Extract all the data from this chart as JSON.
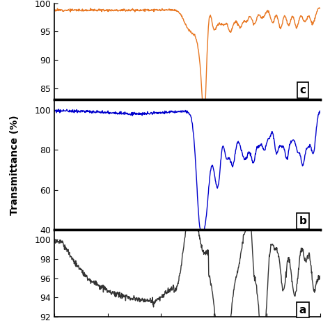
{
  "panel_c": {
    "ylim": [
      83,
      100
    ],
    "yticks": [
      85,
      90,
      95,
      100
    ],
    "label": "c",
    "color": "#E87722",
    "line_width": 1.0
  },
  "panel_b": {
    "ylim": [
      40,
      105
    ],
    "yticks": [
      40,
      60,
      80,
      100
    ],
    "label": "b",
    "color": "#0000CC",
    "line_width": 1.0
  },
  "panel_a": {
    "ylim": [
      92,
      101
    ],
    "yticks": [
      92,
      94,
      96,
      98,
      100
    ],
    "label": "a",
    "color": "#333333",
    "line_width": 1.0
  },
  "ylabel": "Transmittance (%)",
  "background_color": "#ffffff",
  "tick_fontsize": 9,
  "label_fontsize": 10
}
